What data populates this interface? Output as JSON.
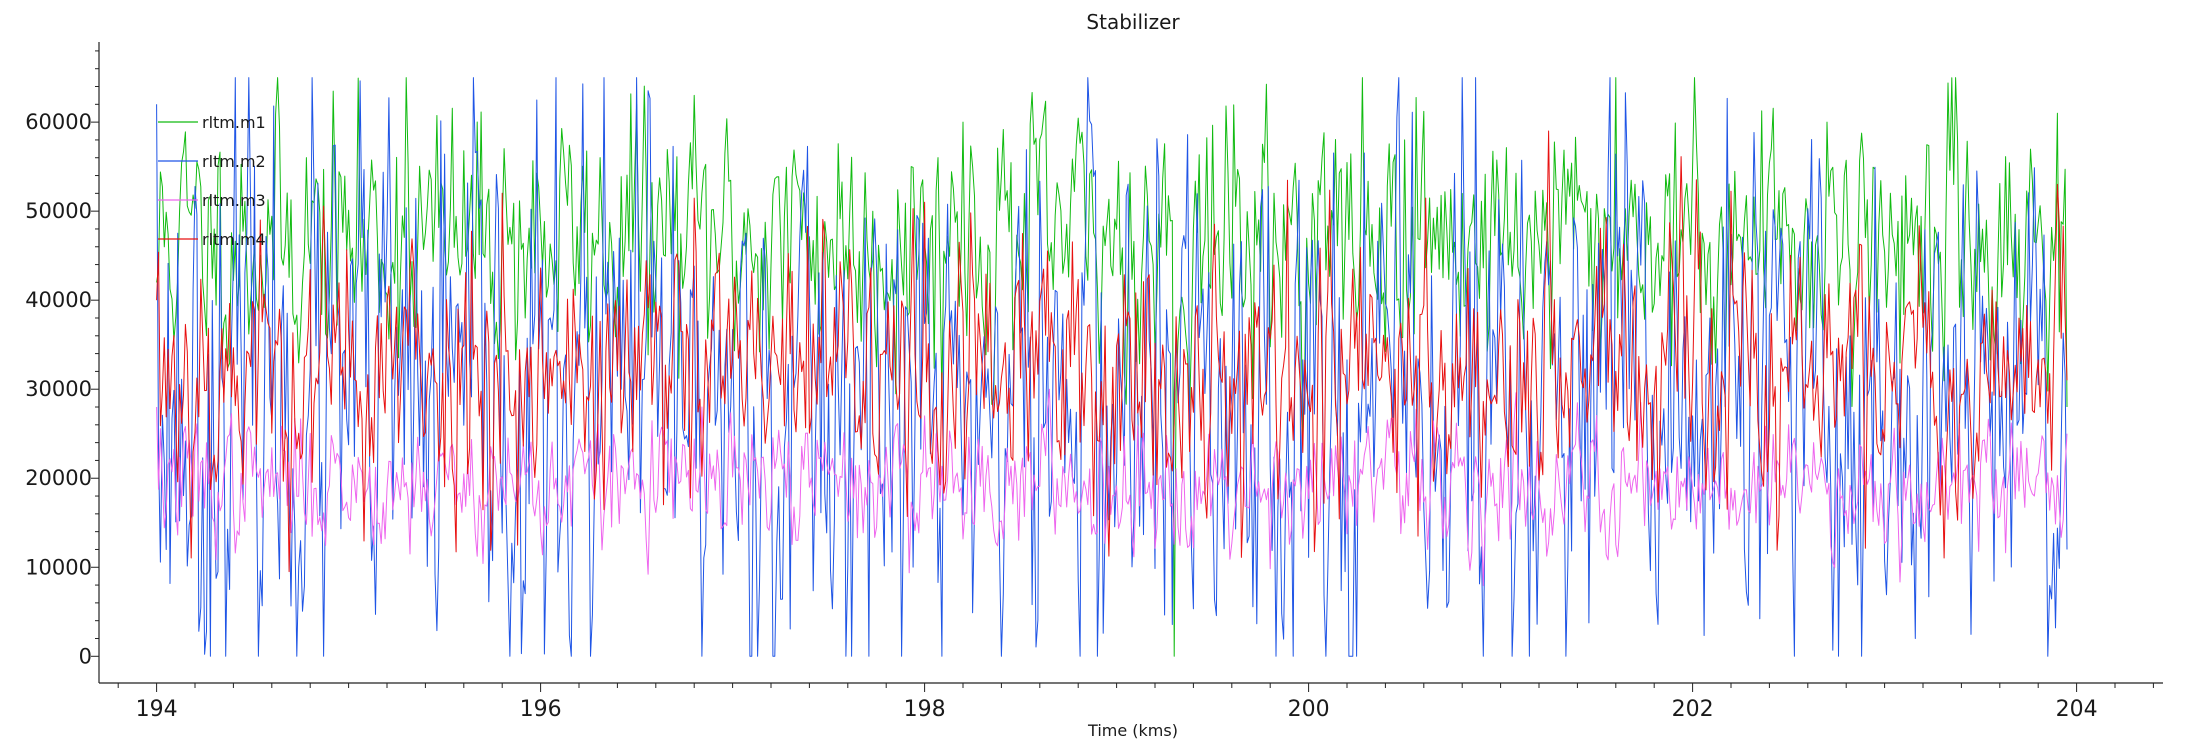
{
  "window": {
    "background": "#f0f0f0",
    "panel_background": "#ffffff"
  },
  "chart_data": {
    "type": "line",
    "title": "Stabilizer",
    "xlabel": "Time (kms)",
    "ylabel": "",
    "xlim": [
      193.7,
      204.45
    ],
    "ylim": [
      -3000,
      69000
    ],
    "xticks": [
      194,
      196,
      198,
      200,
      202,
      204
    ],
    "yticks": [
      0,
      10000,
      20000,
      30000,
      40000,
      50000,
      60000
    ],
    "x_minor_step": 0.2,
    "y_minor_step": 2000,
    "grid": false,
    "legend_position": "top-left",
    "x": {
      "start": 194.0,
      "end": 203.95,
      "step": 0.01
    },
    "series": [
      {
        "name": "rltm.m1",
        "color": "#11bb11",
        "range": [
          0,
          65000
        ],
        "stats": {
          "mean": 47000,
          "std": 9000,
          "approx_min": 0,
          "approx_max": 65000
        },
        "keypoints": [
          [
            194.0,
            42000
          ],
          [
            194.3,
            48000
          ],
          [
            195.3,
            65000
          ],
          [
            196.5,
            62000
          ],
          [
            198.2,
            60000
          ],
          [
            199.3,
            0
          ],
          [
            200.5,
            58000
          ],
          [
            201.6,
            65000
          ],
          [
            202.7,
            60000
          ],
          [
            203.9,
            61000
          ],
          [
            203.95,
            28000
          ]
        ],
        "seed": 11
      },
      {
        "name": "rltm.m2",
        "color": "#1f55e6",
        "range": [
          0,
          65000
        ],
        "stats": {
          "mean": 28000,
          "std": 20000,
          "approx_min": 0,
          "approx_max": 65000
        },
        "keypoints": [
          [
            194.0,
            62000
          ],
          [
            194.05,
            12000
          ],
          [
            195.9,
            300
          ],
          [
            196.5,
            65000
          ],
          [
            198.85,
            65000
          ],
          [
            200.8,
            65000
          ],
          [
            203.85,
            0
          ],
          [
            203.95,
            12000
          ]
        ],
        "seed": 23
      },
      {
        "name": "rltm.m3",
        "color": "#ee66ee",
        "range": [
          5000,
          30000
        ],
        "stats": {
          "mean": 19500,
          "std": 4500,
          "approx_min": 6000,
          "approx_max": 29000
        },
        "keypoints": [
          [
            194.0,
            28000
          ],
          [
            196.0,
            14000
          ],
          [
            198.0,
            27000
          ],
          [
            200.5,
            15000
          ],
          [
            202.5,
            26000
          ],
          [
            203.95,
            25000
          ]
        ],
        "seed": 37
      },
      {
        "name": "rltm.m4",
        "color": "#e81010",
        "range": [
          6000,
          59000
        ],
        "stats": {
          "mean": 32000,
          "std": 10000,
          "approx_min": 7000,
          "approx_max": 59000
        },
        "keypoints": [
          [
            194.0,
            40000
          ],
          [
            195.8,
            52000
          ],
          [
            198.0,
            51000
          ],
          [
            199.5,
            43000
          ],
          [
            201.25,
            59000
          ],
          [
            203.9,
            53000
          ],
          [
            203.95,
            31000
          ]
        ],
        "seed": 53
      }
    ]
  }
}
